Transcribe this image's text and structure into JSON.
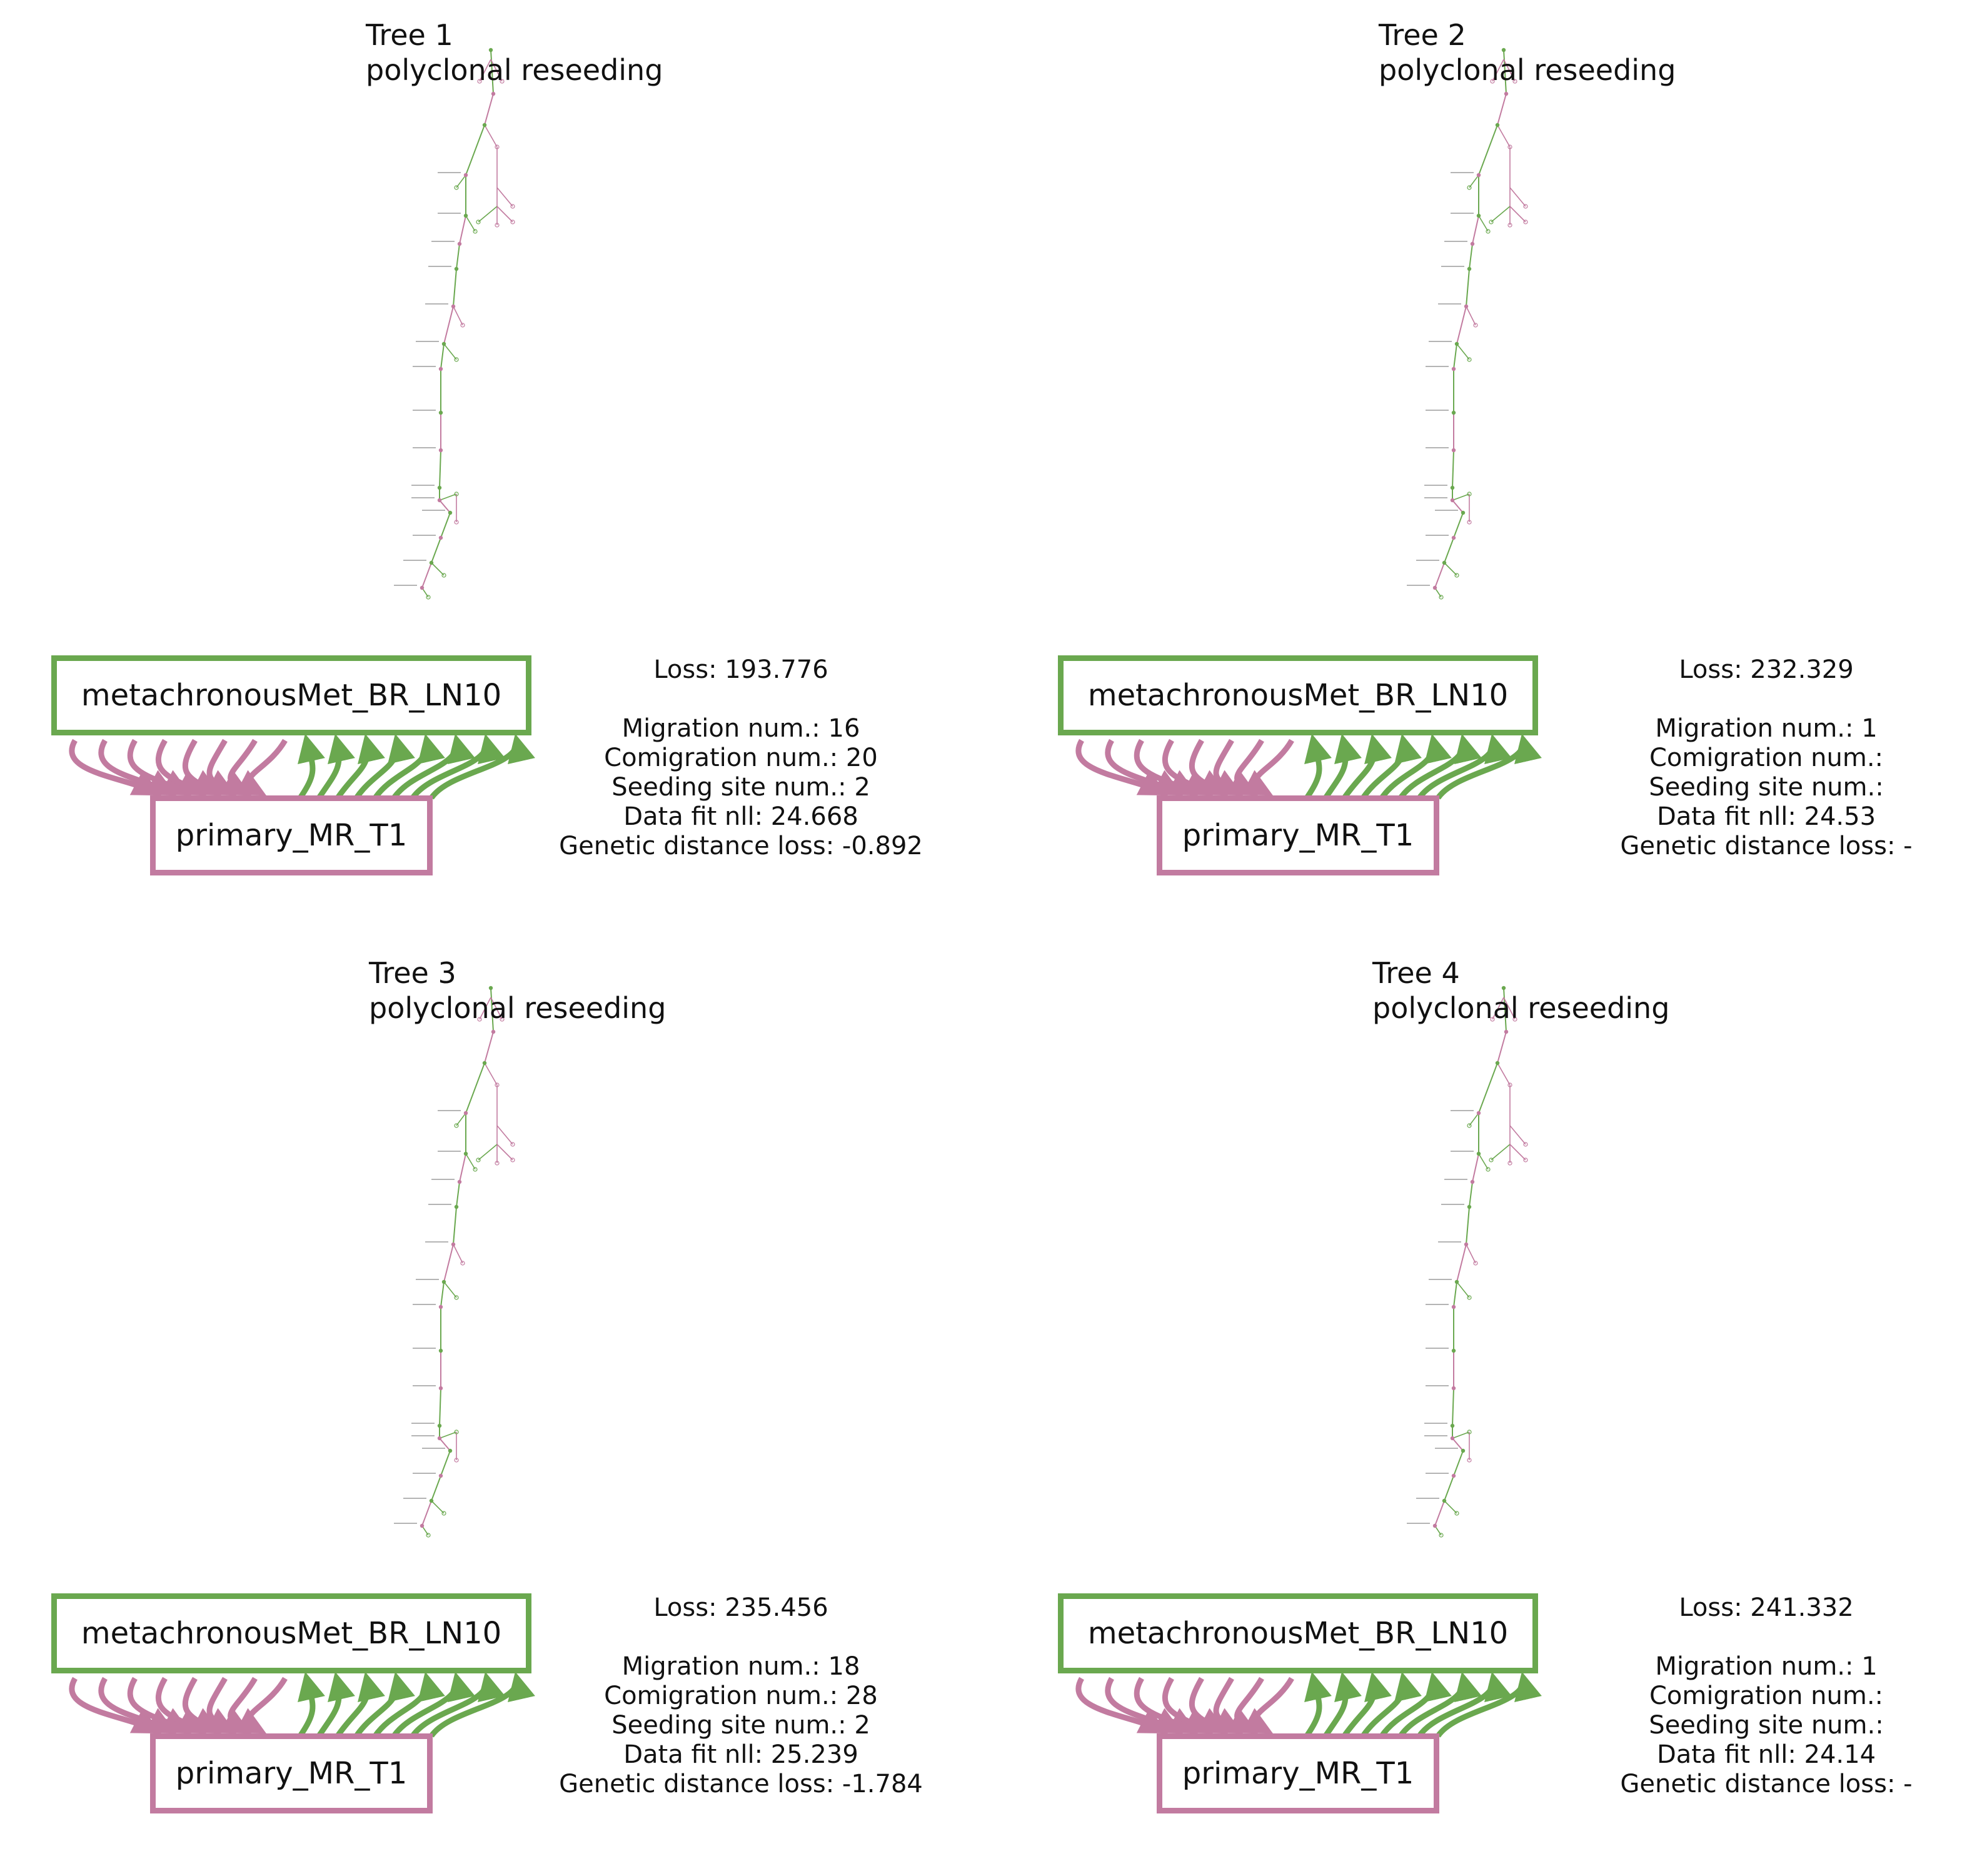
{
  "colors": {
    "met_site": "#6aa84f",
    "primary_site": "#c27ba0"
  },
  "panels": [
    {
      "title": "Tree 1",
      "pattern": "polyclonal reseeding",
      "met_label": "metachronousMet_BR_LN10",
      "primary_label": "primary_MR_T1",
      "stats": {
        "loss": "Loss: 193.776",
        "migration": "Migration num.: 16",
        "comigration": "Comigration num.: 20",
        "seeding": "Seeding site num.: 2",
        "data_fit": "Data fit nll: 24.668",
        "genetic": "Genetic distance loss: -0.892"
      }
    },
    {
      "title": "Tree 2",
      "pattern": "polyclonal reseeding",
      "met_label": "metachronousMet_BR_LN10",
      "primary_label": "primary_MR_T1",
      "stats": {
        "loss": "Loss: 232.329",
        "migration": "Migration num.: 1",
        "comigration": "Comigration num.: ",
        "seeding": "Seeding site num.: ",
        "data_fit": "Data fit nll: 24.53",
        "genetic": "Genetic distance loss: -"
      }
    },
    {
      "title": "Tree 3",
      "pattern": "polyclonal reseeding",
      "met_label": "metachronousMet_BR_LN10",
      "primary_label": "primary_MR_T1",
      "stats": {
        "loss": "Loss: 235.456",
        "migration": "Migration num.: 18",
        "comigration": "Comigration num.: 28",
        "seeding": "Seeding site num.: 2",
        "data_fit": "Data fit nll: 25.239",
        "genetic": "Genetic distance loss: -1.784"
      }
    },
    {
      "title": "Tree 4",
      "pattern": "polyclonal reseeding",
      "met_label": "metachronousMet_BR_LN10",
      "primary_label": "primary_MR_T1",
      "stats": {
        "loss": "Loss: 241.332",
        "migration": "Migration num.: 1",
        "comigration": "Comigration num.: ",
        "seeding": "Seeding site num.: ",
        "data_fit": "Data fit nll: 24.14",
        "genetic": "Genetic distance loss: -"
      }
    }
  ]
}
